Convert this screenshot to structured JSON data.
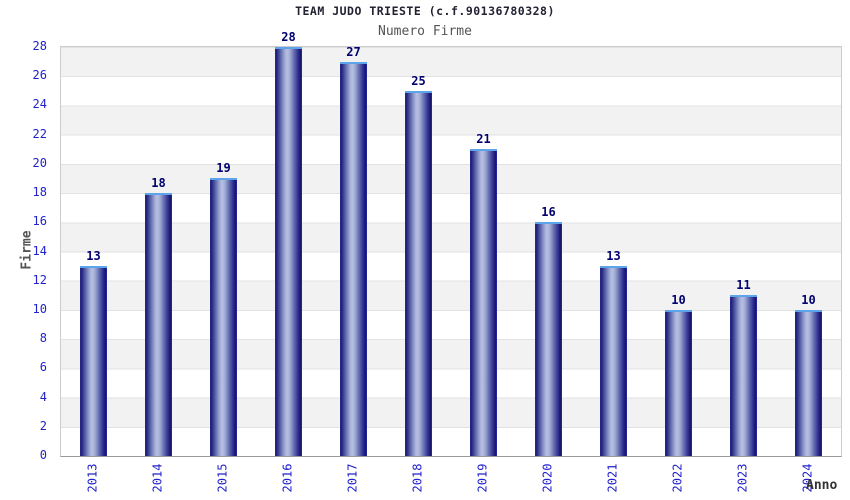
{
  "chart_data": {
    "type": "bar",
    "title": "TEAM JUDO TRIESTE (c.f.90136780328)",
    "subtitle": "Numero Firme",
    "xlabel": "Anno",
    "ylabel": "Firme",
    "categories": [
      "2013",
      "2014",
      "2015",
      "2016",
      "2017",
      "2018",
      "2019",
      "2020",
      "2021",
      "2022",
      "2023",
      "2024"
    ],
    "values": [
      13,
      18,
      19,
      28,
      27,
      25,
      21,
      16,
      13,
      10,
      11,
      10
    ],
    "ylim": [
      0,
      28
    ],
    "ytick_step": 2,
    "legend": null,
    "grid": "horizontal-bands",
    "layout_hint": "value labels above bars, x labels rotated 90deg CCW",
    "colors": {
      "bar_edge": "#1f1f7a",
      "bar_highlight": "#b6bfe2",
      "bar_cap": "#5ea4ea",
      "bar_right_edge": "#2e2ec8",
      "axis_tick_label": "#2222cc",
      "value_label": "#00006e",
      "title_text": "#222233",
      "subtitle_text": "#555555",
      "band_gray": "#f2f2f2",
      "band_white": "#ffffff",
      "gridline": "#e2e2e2"
    }
  }
}
